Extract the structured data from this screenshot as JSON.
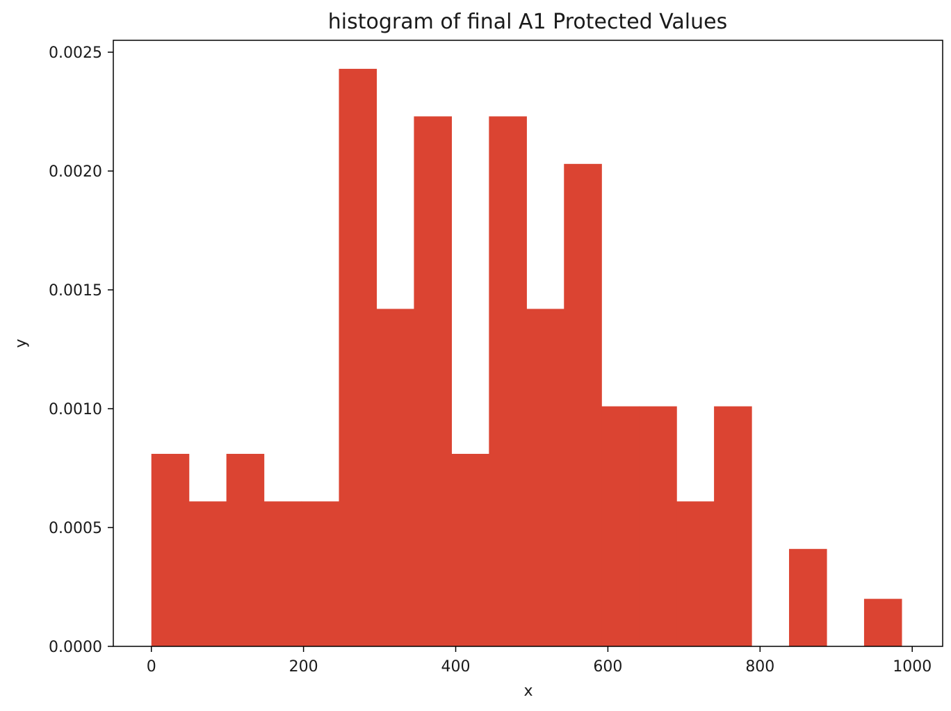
{
  "chart_data": {
    "type": "bar",
    "subtype": "histogram",
    "title": "histogram of final A1 Protected Values",
    "xlabel": "x",
    "ylabel": "y",
    "xlim": [
      -50,
      1040
    ],
    "ylim": [
      0,
      0.00255
    ],
    "grid": false,
    "bar_color": "#db4432",
    "axis_color": "#000000",
    "bin_edges": [
      0,
      49.3,
      98.6,
      147.9,
      197.2,
      246.5,
      295.8,
      345.1,
      394.4,
      443.7,
      493.0,
      542.3,
      591.6,
      640.9,
      690.2,
      739.5,
      788.8,
      838.1,
      887.4,
      936.7,
      986.0
    ],
    "values": [
      0.00081,
      0.00061,
      0.00081,
      0.00061,
      0.00061,
      0.00243,
      0.00142,
      0.00223,
      0.00081,
      0.00223,
      0.00142,
      0.00203,
      0.00101,
      0.00101,
      0.00061,
      0.00101,
      0,
      0.00041,
      0,
      0.0002
    ],
    "x_ticks": [
      {
        "value": 0,
        "label": "0"
      },
      {
        "value": 200,
        "label": "200"
      },
      {
        "value": 400,
        "label": "400"
      },
      {
        "value": 600,
        "label": "600"
      },
      {
        "value": 800,
        "label": "800"
      },
      {
        "value": 1000,
        "label": "1000"
      }
    ],
    "y_ticks": [
      {
        "value": 0,
        "label": "0.0000"
      },
      {
        "value": 0.0005,
        "label": "0.0005"
      },
      {
        "value": 0.001,
        "label": "0.0010"
      },
      {
        "value": 0.0015,
        "label": "0.0015"
      },
      {
        "value": 0.002,
        "label": "0.0020"
      },
      {
        "value": 0.0025,
        "label": "0.0025"
      }
    ]
  }
}
